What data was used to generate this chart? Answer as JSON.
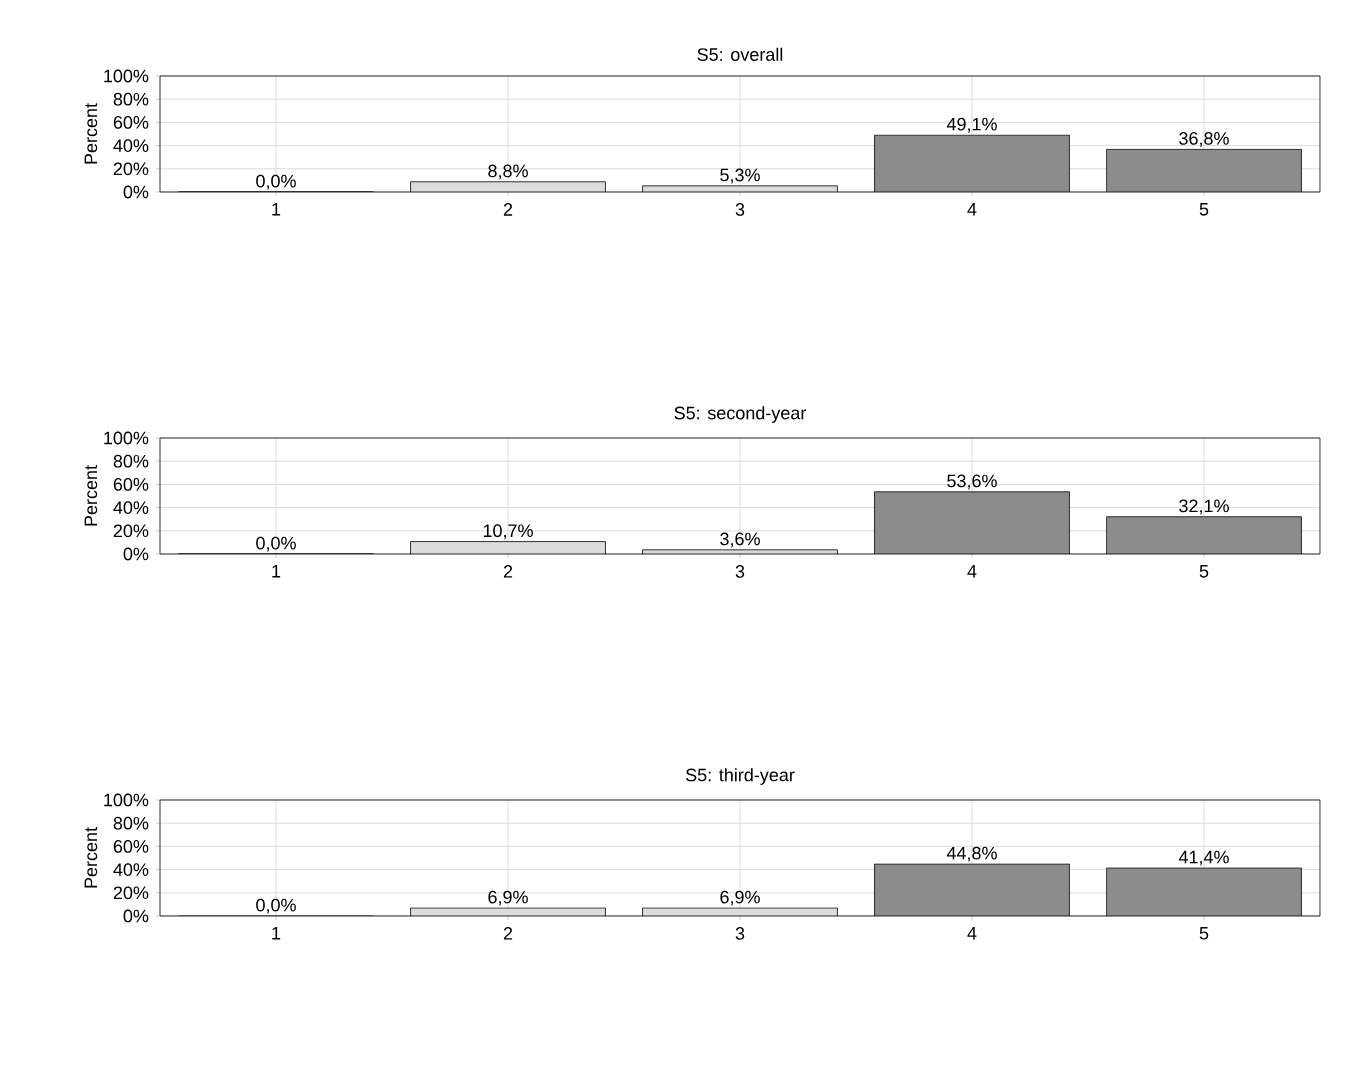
{
  "chart_data": [
    {
      "type": "bar",
      "title": "S5: overall",
      "ylabel": "Percent",
      "categories": [
        "1",
        "2",
        "3",
        "4",
        "5"
      ],
      "values": [
        0.0,
        8.8,
        5.3,
        49.1,
        36.8
      ],
      "value_labels": [
        "0,0%",
        "8,8%",
        "5,3%",
        "49,1%",
        "36,8%"
      ],
      "colors": [
        "#dcdcdc",
        "#dcdcdc",
        "#dcdcdc",
        "#8c8c8c",
        "#8c8c8c"
      ],
      "ylim": [
        0,
        100
      ],
      "yticks": [
        {
          "value": 0,
          "label": "0%"
        },
        {
          "value": 20,
          "label": "20%"
        },
        {
          "value": 40,
          "label": "40%"
        },
        {
          "value": 60,
          "label": "60%"
        },
        {
          "value": 80,
          "label": "80%"
        },
        {
          "value": 100,
          "label": "100%"
        }
      ],
      "grid": true
    },
    {
      "type": "bar",
      "title": "S5: second-year",
      "ylabel": "Percent",
      "categories": [
        "1",
        "2",
        "3",
        "4",
        "5"
      ],
      "values": [
        0.0,
        10.7,
        3.6,
        53.6,
        32.1
      ],
      "value_labels": [
        "0,0%",
        "10,7%",
        "3,6%",
        "53,6%",
        "32,1%"
      ],
      "colors": [
        "#dcdcdc",
        "#dcdcdc",
        "#dcdcdc",
        "#8c8c8c",
        "#8c8c8c"
      ],
      "ylim": [
        0,
        100
      ],
      "yticks": [
        {
          "value": 0,
          "label": "0%"
        },
        {
          "value": 20,
          "label": "20%"
        },
        {
          "value": 40,
          "label": "40%"
        },
        {
          "value": 60,
          "label": "60%"
        },
        {
          "value": 80,
          "label": "80%"
        },
        {
          "value": 100,
          "label": "100%"
        }
      ],
      "grid": true
    },
    {
      "type": "bar",
      "title": "S5: third-year",
      "ylabel": "Percent",
      "categories": [
        "1",
        "2",
        "3",
        "4",
        "5"
      ],
      "values": [
        0.0,
        6.9,
        6.9,
        44.8,
        41.4
      ],
      "value_labels": [
        "0,0%",
        "6,9%",
        "6,9%",
        "44,8%",
        "41,4%"
      ],
      "colors": [
        "#dcdcdc",
        "#dcdcdc",
        "#dcdcdc",
        "#8c8c8c",
        "#8c8c8c"
      ],
      "ylim": [
        0,
        100
      ],
      "yticks": [
        {
          "value": 0,
          "label": "0%"
        },
        {
          "value": 20,
          "label": "20%"
        },
        {
          "value": 40,
          "label": "40%"
        },
        {
          "value": 60,
          "label": "60%"
        },
        {
          "value": 80,
          "label": "80%"
        },
        {
          "value": 100,
          "label": "100%"
        }
      ],
      "grid": true
    }
  ]
}
